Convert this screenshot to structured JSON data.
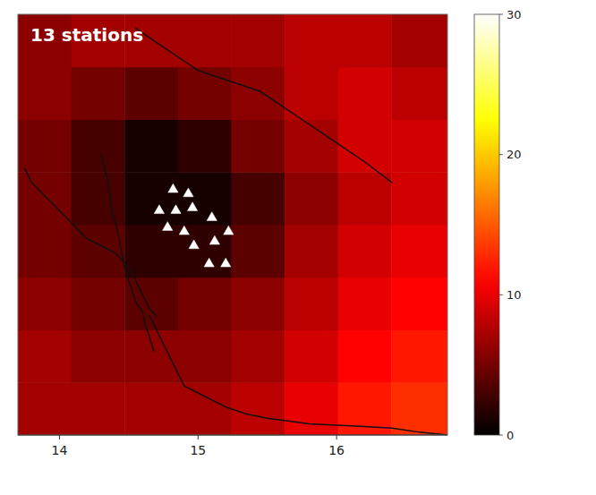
{
  "chart_data": {
    "type": "heatmap",
    "title": "13 stations",
    "xlim": [
      13.7,
      16.8
    ],
    "ylim": [
      43.5,
      46.5
    ],
    "xticks": [
      14,
      15,
      16
    ],
    "tick_labels": "x",
    "x_edges": [
      13.7,
      14.085,
      14.47,
      14.855,
      15.24,
      15.625,
      16.01,
      16.395,
      16.8
    ],
    "y_edges": [
      43.5,
      43.875,
      44.25,
      44.625,
      45.0,
      45.375,
      45.75,
      46.125,
      46.5
    ],
    "cells": [
      [
        7,
        7,
        7,
        7,
        8,
        10,
        12,
        13
      ],
      [
        7,
        6,
        6,
        6,
        7,
        9,
        11,
        12
      ],
      [
        6,
        5,
        4,
        5,
        6,
        8,
        10,
        11
      ],
      [
        5,
        4,
        2,
        2,
        4,
        7,
        9,
        10
      ],
      [
        5,
        3,
        1,
        1,
        3,
        6,
        8,
        9
      ],
      [
        5,
        3,
        1,
        2,
        5,
        7,
        9,
        9
      ],
      [
        6,
        5,
        4,
        5,
        6,
        8,
        9,
        8
      ],
      [
        6,
        7,
        7,
        7,
        7,
        8,
        8,
        7
      ]
    ],
    "color_range": [
      0,
      30
    ],
    "color_ticks": [
      0,
      10,
      20,
      30
    ],
    "series": [
      {
        "type": "line",
        "x": [
          13.75,
          13.8,
          13.9,
          14.0,
          14.1,
          14.2,
          14.3,
          14.4,
          14.5,
          14.55,
          14.6,
          14.65,
          14.7
        ],
        "values": [
          45.4,
          45.3,
          45.2,
          45.1,
          45.0,
          44.9,
          44.85,
          44.8,
          44.7,
          44.6,
          44.5,
          44.4,
          44.35
        ]
      },
      {
        "type": "line",
        "x": [
          14.55,
          14.7,
          14.85,
          15.0,
          15.15,
          15.3,
          15.45,
          15.6,
          15.75,
          15.9,
          16.05,
          16.2,
          16.4
        ],
        "values": [
          46.4,
          46.3,
          46.2,
          46.1,
          46.05,
          46.0,
          45.95,
          45.85,
          45.75,
          45.65,
          45.55,
          45.45,
          45.3
        ]
      },
      {
        "type": "line",
        "x": [
          14.65,
          14.7,
          14.75,
          14.8,
          14.85,
          14.9,
          15.0,
          15.1,
          15.2,
          15.35,
          15.5,
          15.65,
          15.8,
          16.0,
          16.2,
          16.4,
          16.6,
          16.8
        ],
        "values": [
          44.35,
          44.25,
          44.15,
          44.05,
          43.95,
          43.85,
          43.8,
          43.75,
          43.7,
          43.65,
          43.62,
          43.6,
          43.58,
          43.57,
          43.56,
          43.55,
          43.52,
          43.5
        ]
      },
      {
        "type": "line",
        "x": [
          14.3,
          14.35,
          14.38,
          14.42,
          14.45,
          14.48,
          14.52,
          14.55,
          14.6,
          14.62,
          14.65,
          14.68
        ],
        "values": [
          45.5,
          45.3,
          45.1,
          44.95,
          44.8,
          44.65,
          44.55,
          44.45,
          44.38,
          44.28,
          44.2,
          44.1
        ]
      },
      {
        "type": "scatter",
        "marker": "triangle",
        "x": [
          14.82,
          14.93,
          14.72,
          14.84,
          14.96,
          14.78,
          14.9,
          15.1,
          14.97,
          15.12,
          15.22,
          15.08,
          15.2
        ],
        "values": [
          45.25,
          45.22,
          45.1,
          45.1,
          45.12,
          44.98,
          44.95,
          45.05,
          44.85,
          44.88,
          44.95,
          44.72,
          44.72
        ]
      }
    ]
  }
}
